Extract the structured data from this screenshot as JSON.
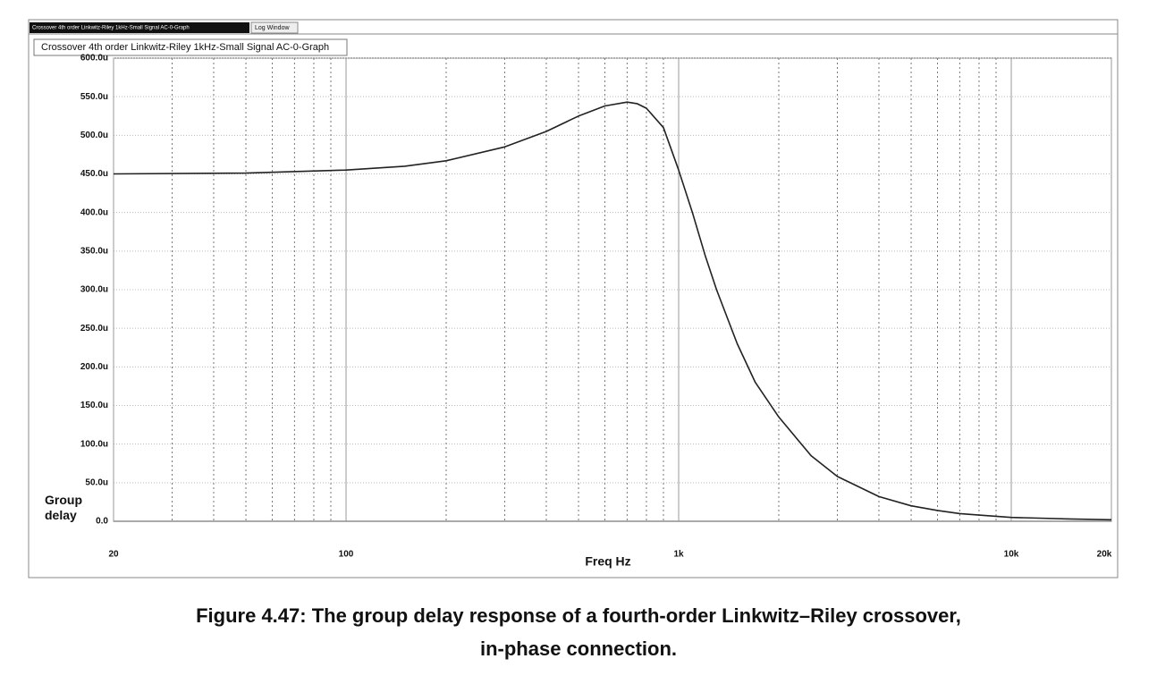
{
  "window": {
    "tabs": [
      "Crossover 4th order Linkwitz-Riley 1kHz-Small Signal AC-0-Graph",
      "Log Window"
    ],
    "graph_tab": "Crossover 4th order Linkwitz-Riley 1kHz-Small Signal AC-0-Graph"
  },
  "chart_data": {
    "type": "line",
    "xscale": "log",
    "grid": true,
    "color": "#222222",
    "xlabel": "Freq Hz",
    "ylabel": "Group delay",
    "x": [
      20,
      50,
      100,
      150,
      200,
      300,
      400,
      500,
      600,
      700,
      750,
      800,
      900,
      1000,
      1100,
      1200,
      1300,
      1500,
      1700,
      2000,
      2500,
      3000,
      4000,
      5000,
      6000,
      7000,
      8000,
      10000,
      15000,
      20000
    ],
    "values": [
      450,
      451,
      455,
      460,
      467,
      485,
      505,
      525,
      538,
      543,
      541,
      535,
      510,
      455,
      400,
      345,
      300,
      230,
      180,
      135,
      85,
      58,
      32,
      20,
      14,
      10,
      8,
      5,
      3,
      2
    ],
    "xlim": [
      20,
      20000
    ],
    "xticks": [
      20,
      100,
      {
        "value": 1000,
        "label": "1k"
      },
      {
        "value": 10000,
        "label": "10k"
      },
      {
        "value": 20000,
        "label": "20k"
      }
    ],
    "xminor": [
      30,
      40,
      50,
      60,
      70,
      80,
      90,
      200,
      300,
      400,
      500,
      600,
      700,
      800,
      900,
      2000,
      3000,
      4000,
      5000,
      6000,
      7000,
      8000,
      9000
    ],
    "ylim": [
      0,
      600
    ],
    "yticks": [
      {
        "value": 0,
        "label": "0.0"
      },
      {
        "value": 50,
        "label": "50.0u"
      },
      {
        "value": 100,
        "label": "100.0u"
      },
      {
        "value": 150,
        "label": "150.0u"
      },
      {
        "value": 200,
        "label": "200.0u"
      },
      {
        "value": 250,
        "label": "250.0u"
      },
      {
        "value": 300,
        "label": "300.0u"
      },
      {
        "value": 350,
        "label": "350.0u"
      },
      {
        "value": 400,
        "label": "400.0u"
      },
      {
        "value": 450,
        "label": "450.0u"
      },
      {
        "value": 500,
        "label": "500.0u"
      },
      {
        "value": 550,
        "label": "550.0u"
      },
      {
        "value": 600,
        "label": "600.0u"
      }
    ]
  },
  "caption": [
    "Figure 4.47: The group delay response of a fourth-order Linkwitz–Riley crossover,",
    "in-phase connection."
  ]
}
